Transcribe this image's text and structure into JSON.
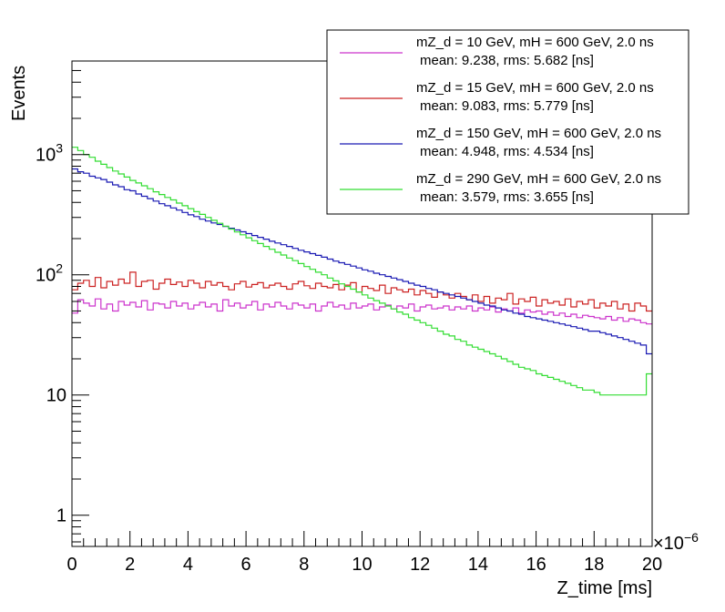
{
  "chart_data": {
    "type": "line",
    "style": "step-histogram",
    "title": "",
    "xlabel": "Z_time [ms]",
    "ylabel": "Events",
    "x_exponent": "×10",
    "x_exponent_power": "−6",
    "xlim": [
      0,
      20
    ],
    "ylim": [
      0.55,
      6000
    ],
    "yscale": "log",
    "grid": false,
    "legend_position": "top-right",
    "x_ticks": [
      "0",
      "2",
      "4",
      "6",
      "8",
      "10",
      "12",
      "14",
      "16",
      "18",
      "20"
    ],
    "y_ticks": [
      {
        "value": 1,
        "label": "1",
        "sup": ""
      },
      {
        "value": 10,
        "label": "10",
        "sup": ""
      },
      {
        "value": 100,
        "label": "10",
        "sup": "2"
      },
      {
        "value": 1000,
        "label": "10",
        "sup": "3"
      }
    ],
    "bin_width": 0.2,
    "series": [
      {
        "name": "mZ_d = 10 GeV, mH = 600 GeV, 2.0 ns",
        "stats": "mean: 9.238, rms: 5.682 [ns]",
        "color": "#cc33cc",
        "values": [
          48,
          62,
          58,
          55,
          63,
          52,
          57,
          50,
          60,
          56,
          59,
          54,
          61,
          51,
          58,
          57,
          53,
          60,
          55,
          58,
          52,
          56,
          59,
          54,
          57,
          50,
          62,
          55,
          58,
          53,
          56,
          60,
          51,
          57,
          54,
          59,
          55,
          52,
          58,
          56,
          53,
          57,
          50,
          55,
          59,
          54,
          56,
          52,
          58,
          53,
          55,
          57,
          51,
          54,
          56,
          52,
          55,
          53,
          57,
          50,
          54,
          56,
          52,
          53,
          55,
          51,
          54,
          52,
          55,
          50,
          53,
          51,
          54,
          49,
          52,
          50,
          53,
          48,
          51,
          49,
          50,
          47,
          49,
          46,
          48,
          45,
          47,
          44,
          46,
          45,
          44,
          43,
          45,
          42,
          44,
          41,
          43,
          42,
          40,
          39
        ]
      },
      {
        "name": "mZ_d = 15 GeV, mH = 600 GeV, 2.0 ns",
        "stats": "mean: 9.083, rms: 5.779 [ns]",
        "color": "#cc2222",
        "values": [
          75,
          85,
          90,
          80,
          95,
          78,
          88,
          82,
          92,
          85,
          105,
          80,
          88,
          90,
          76,
          85,
          92,
          83,
          87,
          80,
          90,
          85,
          78,
          88,
          82,
          86,
          80,
          75,
          84,
          88,
          79,
          83,
          86,
          78,
          82,
          85,
          80,
          76,
          84,
          88,
          81,
          77,
          85,
          80,
          78,
          83,
          75,
          82,
          86,
          72,
          80,
          77,
          74,
          82,
          70,
          78,
          75,
          72,
          76,
          68,
          74,
          70,
          65,
          72,
          68,
          64,
          70,
          66,
          62,
          68,
          60,
          66,
          58,
          64,
          62,
          70,
          57,
          63,
          60,
          65,
          55,
          62,
          58,
          60,
          56,
          63,
          54,
          60,
          57,
          62,
          53,
          58,
          55,
          60,
          52,
          57,
          50,
          58,
          55,
          50
        ]
      },
      {
        "name": "mZ_d = 150 GeV, mH = 600 GeV, 2.0 ns",
        "stats": "mean: 4.948, rms: 4.534 [ns]",
        "color": "#1a1ab3",
        "values": [
          760,
          720,
          700,
          660,
          640,
          620,
          590,
          560,
          540,
          510,
          500,
          470,
          450,
          430,
          410,
          390,
          375,
          360,
          345,
          330,
          315,
          305,
          290,
          280,
          270,
          262,
          252,
          244,
          236,
          228,
          220,
          212,
          205,
          198,
          190,
          184,
          178,
          172,
          166,
          160,
          155,
          150,
          145,
          140,
          135,
          130,
          126,
          122,
          118,
          114,
          110,
          107,
          103,
          100,
          97,
          94,
          91,
          88,
          85,
          82,
          80,
          77,
          75,
          72,
          70,
          68,
          66,
          64,
          62,
          60,
          58,
          56,
          55,
          53,
          51,
          50,
          48,
          47,
          45,
          44,
          43,
          42,
          41,
          40,
          39,
          38,
          37,
          36,
          35,
          34,
          34,
          33,
          32,
          31,
          30,
          29,
          28,
          27,
          26,
          22
        ]
      },
      {
        "name": "mZ_d = 290 GeV, mH = 600 GeV, 2.0 ns",
        "stats": "mean: 3.579, rms: 3.655 [ns]",
        "color": "#33dd33",
        "values": [
          1150,
          1080,
          1000,
          950,
          880,
          830,
          780,
          730,
          690,
          650,
          610,
          580,
          550,
          520,
          490,
          465,
          440,
          420,
          395,
          375,
          355,
          335,
          318,
          300,
          284,
          268,
          254,
          240,
          227,
          215,
          203,
          192,
          182,
          172,
          163,
          154,
          146,
          138,
          131,
          124,
          117,
          111,
          105,
          100,
          94,
          89,
          84,
          80,
          76,
          72,
          68,
          64,
          61,
          58,
          55,
          52,
          49,
          47,
          44,
          42,
          40,
          38,
          36,
          34,
          32,
          31,
          29,
          28,
          26,
          25,
          24,
          23,
          22,
          21,
          20,
          19,
          18,
          17,
          16.5,
          16,
          15,
          14.5,
          14,
          13.5,
          13,
          12.5,
          12,
          11.5,
          11,
          11,
          10.5,
          10,
          10,
          10,
          10,
          10,
          10,
          10,
          10,
          15
        ]
      }
    ]
  }
}
